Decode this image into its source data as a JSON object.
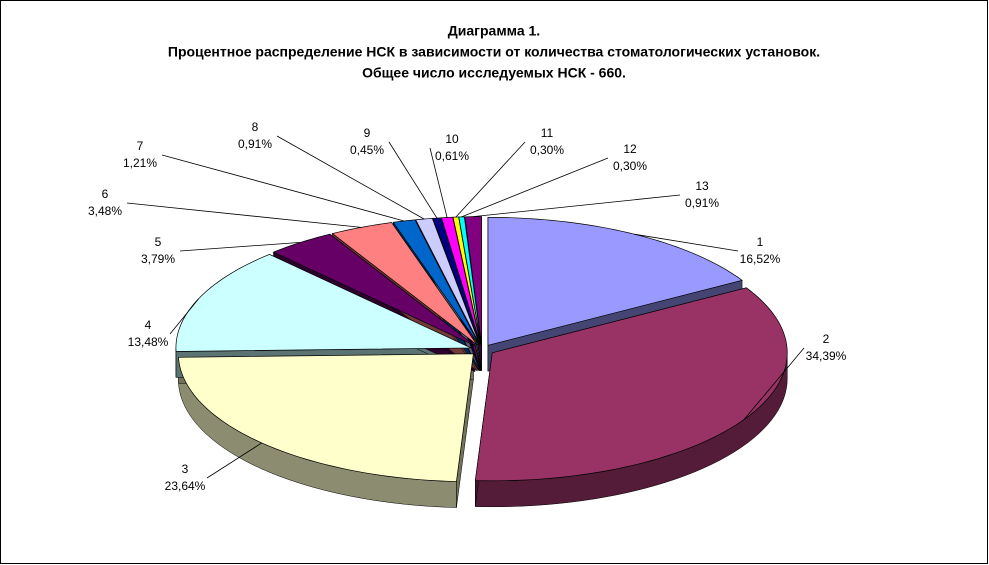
{
  "chart_data": {
    "type": "pie",
    "title_lines": [
      "Диаграмма 1.",
      "Процентное распределение НСК в зависимости от количества стоматологических установок.",
      "Общее число исследуемых НСК - 660."
    ],
    "categories": [
      "1",
      "2",
      "3",
      "4",
      "5",
      "6",
      "7",
      "8",
      "9",
      "10",
      "11",
      "12",
      "13"
    ],
    "values": [
      16.52,
      34.39,
      23.64,
      13.48,
      3.79,
      3.48,
      1.21,
      0.91,
      0.45,
      0.61,
      0.3,
      0.3,
      0.91
    ],
    "value_labels": [
      "16,52%",
      "34,39%",
      "23,64%",
      "13,48%",
      "3,79%",
      "3,48%",
      "1,21%",
      "0,91%",
      "0,45%",
      "0,61%",
      "0,30%",
      "0,30%",
      "0,91%"
    ],
    "colors": [
      "#9999ff",
      "#993366",
      "#ffffcc",
      "#ccffff",
      "#660066",
      "#ff8080",
      "#0066cc",
      "#ccccff",
      "#000080",
      "#ff00ff",
      "#ffff00",
      "#00ffff",
      "#800080"
    ]
  }
}
